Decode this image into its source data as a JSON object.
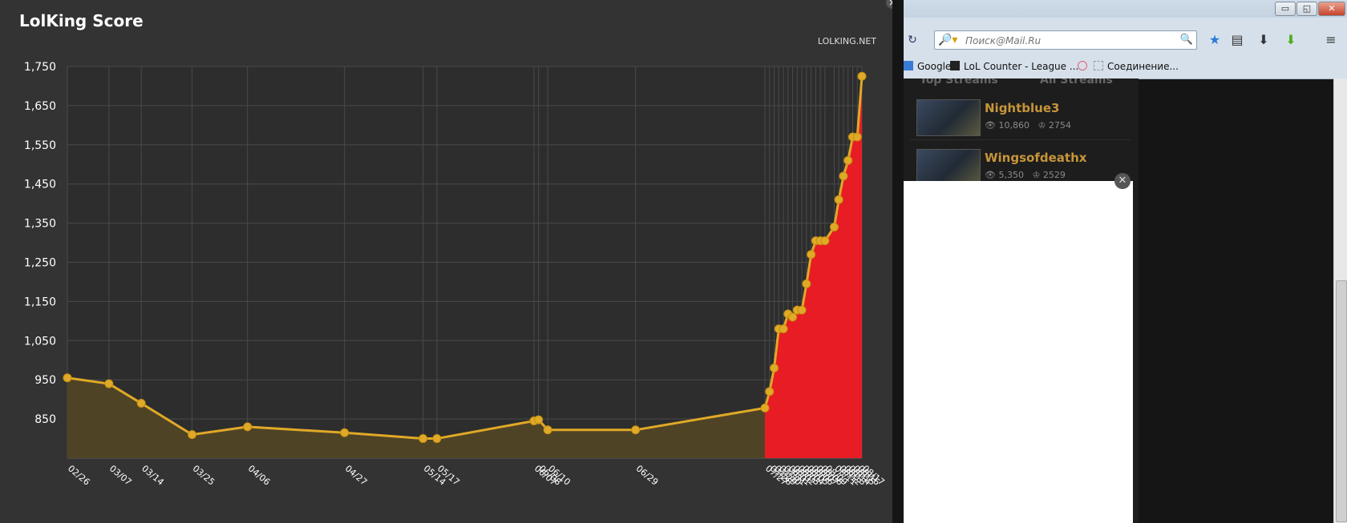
{
  "chart_panel": {
    "title": "LolKing Score",
    "credit": "LOLKING.NET",
    "close_label": "×"
  },
  "colors": {
    "panel_bg": "#333333",
    "grid": "#4a4a4a",
    "line": "#e0a927",
    "fill_before": "#4f4326",
    "fill_after": "#e81c24",
    "axis_text": "#ffffff"
  },
  "chart_data": {
    "type": "area",
    "title": "LolKing Score",
    "xlabel": "",
    "ylabel": "",
    "ylim": [
      750,
      1750
    ],
    "yticks": [
      850,
      950,
      1050,
      1150,
      1250,
      1350,
      1450,
      1550,
      1650,
      1750
    ],
    "ytick_labels": [
      "850",
      "950",
      "1,050",
      "1,150",
      "1,250",
      "1,350",
      "1,450",
      "1,550",
      "1,650",
      "1,750"
    ],
    "grid": true,
    "highlight_from_label": "07/27",
    "x": [
      "02/26",
      "03/07",
      "03/14",
      "03/25",
      "04/06",
      "04/27",
      "05/14",
      "05/17",
      "06/07",
      "06/08",
      "06/10",
      "06/29",
      "07/27",
      "07/28",
      "07/29",
      "07/30",
      "07/31",
      "08/01",
      "08/02",
      "08/03",
      "08/04",
      "08/05",
      "08/06",
      "08/07",
      "08/08",
      "08/09",
      "08/11",
      "08/12",
      "08/13",
      "08/14",
      "08/15",
      "08/16",
      "08/17"
    ],
    "x_days": [
      0,
      9,
      16,
      27,
      39,
      60,
      77,
      80,
      101,
      102,
      104,
      123,
      151,
      152,
      153,
      154,
      155,
      156,
      157,
      158,
      159,
      160,
      161,
      162,
      163,
      164,
      166,
      167,
      168,
      169,
      170,
      171,
      172
    ],
    "values": [
      955,
      940,
      890,
      810,
      830,
      815,
      800,
      800,
      845,
      848,
      822,
      822,
      878,
      920,
      980,
      1080,
      1080,
      1118,
      1110,
      1128,
      1128,
      1195,
      1270,
      1305,
      1305,
      1305,
      1340,
      1410,
      1470,
      1510,
      1570,
      1570,
      1725
    ]
  },
  "browser": {
    "window_buttons": [
      "▭",
      "◱",
      "✕"
    ],
    "reload_icon": "↻",
    "search_placeholder": "Поиск@Mail.Ru",
    "search_engine_icon": "🔎▾",
    "search_go_icon": "🔍",
    "toolbar_icons": [
      "★",
      "▤",
      "⬇",
      "⬇",
      "≡"
    ],
    "bookmarks": [
      {
        "label": "Google",
        "icon_color": "#3a7bd5"
      },
      {
        "label": "LoL Counter - League ...",
        "icon_color": "#222222"
      },
      {
        "label": "",
        "icon_color": "#e85a7a"
      },
      {
        "label": "Соединение...",
        "icon_color": "#bbbbbb"
      }
    ]
  },
  "streams": {
    "tabs": [
      "Top Streams",
      "All Streams"
    ],
    "items": [
      {
        "name": "Nightblue3",
        "viewers": "10,860",
        "score": "2754"
      },
      {
        "name": "Wingsofdeathx",
        "viewers": "5,350",
        "score": "2529"
      }
    ],
    "ad_close_label": "✕"
  }
}
